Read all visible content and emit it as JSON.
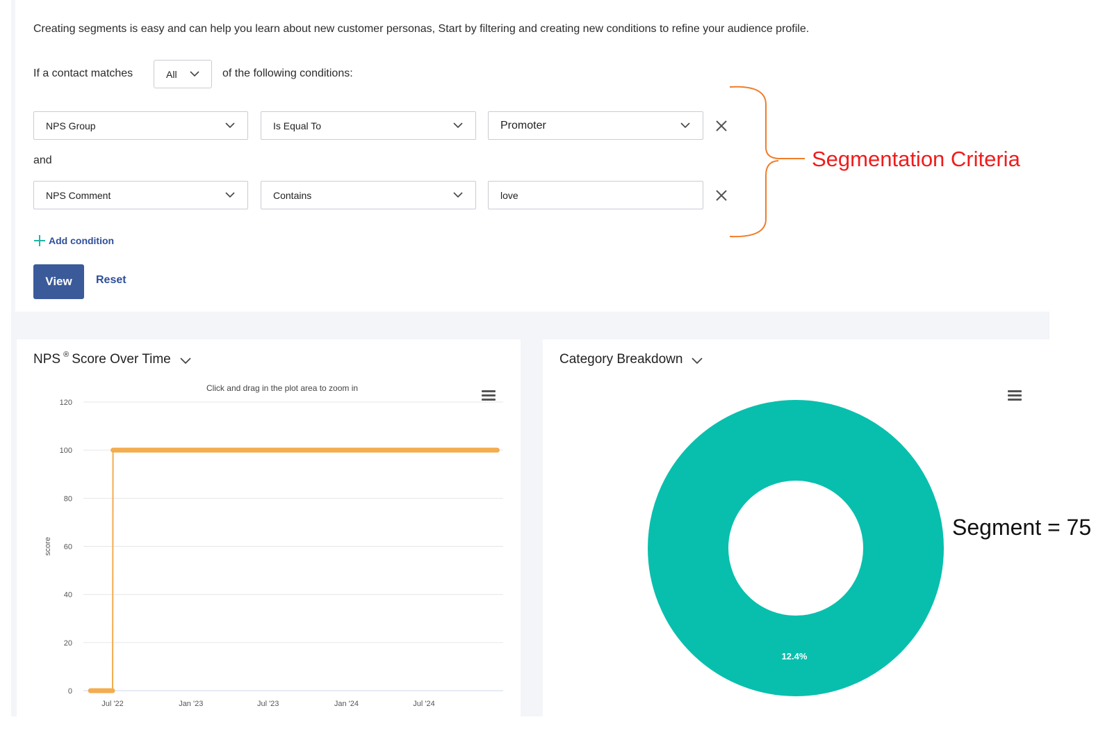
{
  "intro_text": "Creating segments is easy and can help you learn about new customer personas, Start by filtering and creating new conditions to refine your audience profile.",
  "match": {
    "prefix": "If a contact matches",
    "value": "All",
    "suffix": "of the following conditions:"
  },
  "conditions": [
    {
      "field": "NPS Group",
      "operator": "Is Equal To",
      "value": "Promoter"
    },
    {
      "field": "NPS Comment",
      "operator": "Contains",
      "value": "love"
    }
  ],
  "connector": "and",
  "add_condition_label": "Add condition",
  "view_label": "View",
  "reset_label": "Reset",
  "annotations": {
    "criteria": "Segmentation Criteria",
    "segment": "Segment = 75",
    "brace_color": "#f07d28",
    "criteria_color": "#ef1c1c"
  },
  "nps_chart": {
    "title_prefix": "NPS",
    "title_sup": "®",
    "title_suffix": "Score Over Time"
  },
  "category_chart": {
    "title": "Category Breakdown"
  },
  "colors": {
    "accent_blue": "#3b5a9a",
    "line_orange": "#f3ac4f",
    "donut_teal": "#08bfad",
    "add_icon_green": "#1fb5a4"
  },
  "chart_data": [
    {
      "type": "line",
      "title": "NPS ® Score Over Time",
      "subtitle": "Click and drag in the plot area to zoom in",
      "xlabel": "",
      "ylabel": "score",
      "ylim": [
        0,
        120
      ],
      "yticks": [
        "0",
        "20",
        "40",
        "60",
        "80",
        "100",
        "120"
      ],
      "xticks": [
        "Jul '22",
        "Jan '23",
        "Jul '23",
        "Jan '24",
        "Jul '24"
      ],
      "grid": true,
      "series": [
        {
          "color": "#f3ac4f",
          "x": [
            "2022-05-10",
            "2022-07-01",
            "2022-07-02",
            "2024-12-20"
          ],
          "values": [
            0,
            0,
            100,
            100
          ]
        }
      ]
    },
    {
      "type": "pie",
      "title": "Category Breakdown",
      "slices": [
        {
          "value": 100,
          "label": "12.4%",
          "color": "#08bfad"
        }
      ]
    }
  ]
}
